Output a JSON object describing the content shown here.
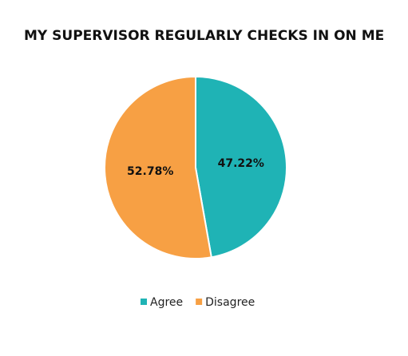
{
  "chart_data": {
    "type": "pie",
    "title": "MY SUPERVISOR REGULARLY CHECKS IN ON ME",
    "categories": [
      "Agree",
      "Disagree"
    ],
    "values": [
      47.22,
      52.78
    ],
    "value_labels": [
      "47.22%",
      "52.78%"
    ],
    "colors": [
      "#1fb3b5",
      "#f7a044"
    ]
  }
}
